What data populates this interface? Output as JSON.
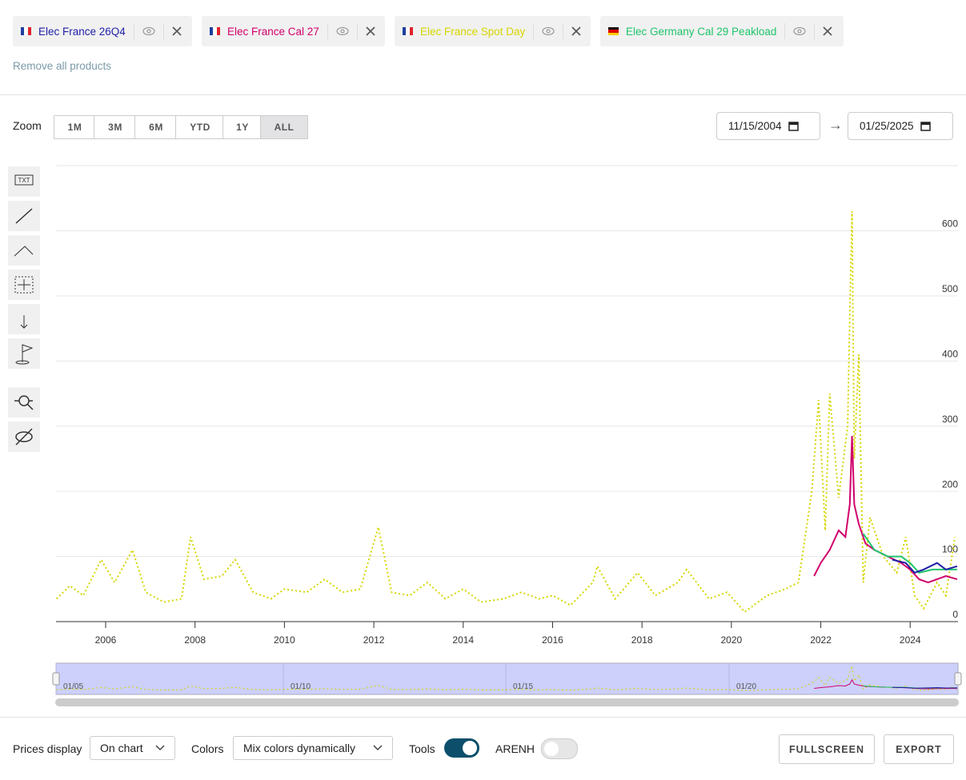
{
  "products": [
    {
      "name": "Elec France 26Q4",
      "color": "#1f1fa8"
    },
    {
      "name": "Elec France Cal 27",
      "color": "#d1006b"
    },
    {
      "name": "Elec France Spot Day",
      "color": "#d6d600"
    },
    {
      "name": "Elec Germany Cal 29 Peakload",
      "color": "#20c46c"
    }
  ],
  "remove_all": "Remove all products",
  "zoom": {
    "label": "Zoom",
    "buttons": [
      "1M",
      "3M",
      "6M",
      "YTD",
      "1Y",
      "ALL"
    ],
    "active": 5
  },
  "date_range": {
    "start": "11/15/2004",
    "arrow": "→",
    "end": "01/25/2025"
  },
  "chart_data": {
    "type": "line",
    "xlim": [
      2004.89,
      2025.07
    ],
    "xticks": [
      2006,
      2008,
      2010,
      2012,
      2014,
      2016,
      2018,
      2020,
      2022,
      2024
    ],
    "ylim": [
      0,
      700
    ],
    "yticks": [
      0,
      100,
      200,
      300,
      400,
      500,
      600
    ],
    "grid": true,
    "series": [
      {
        "name": "Elec France Spot Day",
        "color": "#d6d600",
        "dashed": true,
        "x": [
          2004.9,
          2005.2,
          2005.5,
          2005.9,
          2006.2,
          2006.6,
          2006.9,
          2007.3,
          2007.7,
          2007.9,
          2008.2,
          2008.6,
          2008.9,
          2009.3,
          2009.7,
          2010.0,
          2010.5,
          2010.9,
          2011.3,
          2011.7,
          2012.1,
          2012.4,
          2012.8,
          2013.2,
          2013.6,
          2014.0,
          2014.4,
          2014.9,
          2015.3,
          2015.7,
          2016.0,
          2016.4,
          2016.9,
          2017.0,
          2017.4,
          2017.9,
          2018.3,
          2018.8,
          2019.0,
          2019.5,
          2019.9,
          2020.3,
          2020.8,
          2021.2,
          2021.5,
          2021.8,
          2021.95,
          2022.1,
          2022.2,
          2022.4,
          2022.6,
          2022.65,
          2022.7,
          2022.75,
          2022.85,
          2022.95,
          2023.1,
          2023.4,
          2023.7,
          2023.9,
          2024.1,
          2024.3,
          2024.6,
          2024.8,
          2025.0
        ],
        "values": [
          35,
          55,
          40,
          95,
          60,
          110,
          45,
          30,
          35,
          130,
          65,
          70,
          95,
          45,
          35,
          50,
          45,
          65,
          45,
          50,
          145,
          45,
          40,
          60,
          35,
          50,
          30,
          35,
          45,
          35,
          40,
          25,
          60,
          85,
          35,
          75,
          40,
          60,
          80,
          35,
          45,
          15,
          40,
          50,
          60,
          200,
          340,
          140,
          350,
          190,
          300,
          470,
          630,
          250,
          410,
          60,
          160,
          100,
          75,
          130,
          40,
          20,
          60,
          40,
          130
        ]
      },
      {
        "name": "Elec France Cal 27",
        "color": "#d1006b",
        "dashed": false,
        "x": [
          2021.85,
          2022.0,
          2022.2,
          2022.4,
          2022.55,
          2022.65,
          2022.7,
          2022.75,
          2022.85,
          2023.0,
          2023.2,
          2023.5,
          2023.8,
          2024.0,
          2024.2,
          2024.4,
          2024.6,
          2024.8,
          2025.05
        ],
        "values": [
          70,
          90,
          110,
          140,
          130,
          180,
          285,
          180,
          150,
          120,
          110,
          100,
          90,
          80,
          65,
          60,
          65,
          70,
          65
        ]
      },
      {
        "name": "Elec Germany Cal 29 Peakload",
        "color": "#20c46c",
        "dashed": false,
        "x": [
          2022.95,
          2023.2,
          2023.5,
          2023.8,
          2024.0,
          2024.2,
          2024.5,
          2024.8,
          2025.05
        ],
        "values": [
          135,
          110,
          100,
          100,
          90,
          75,
          80,
          80,
          80
        ]
      },
      {
        "name": "Elec France 26Q4",
        "color": "#1f1fa8",
        "dashed": false,
        "x": [
          2023.6,
          2023.9,
          2024.1,
          2024.3,
          2024.6,
          2024.8,
          2025.05
        ],
        "values": [
          95,
          90,
          75,
          80,
          90,
          80,
          85
        ]
      }
    ]
  },
  "navigator": {
    "labels": [
      "01/05",
      "01/10",
      "01/15",
      "01/20"
    ]
  },
  "footer": {
    "prices_label": "Prices display",
    "prices_value": "On chart",
    "colors_label": "Colors",
    "colors_value": "Mix colors dynamically",
    "tools_label": "Tools",
    "tools_on": true,
    "arenh_label": "ARENH",
    "arenh_on": false,
    "fullscreen": "FULLSCREEN",
    "export": "EXPORT"
  }
}
